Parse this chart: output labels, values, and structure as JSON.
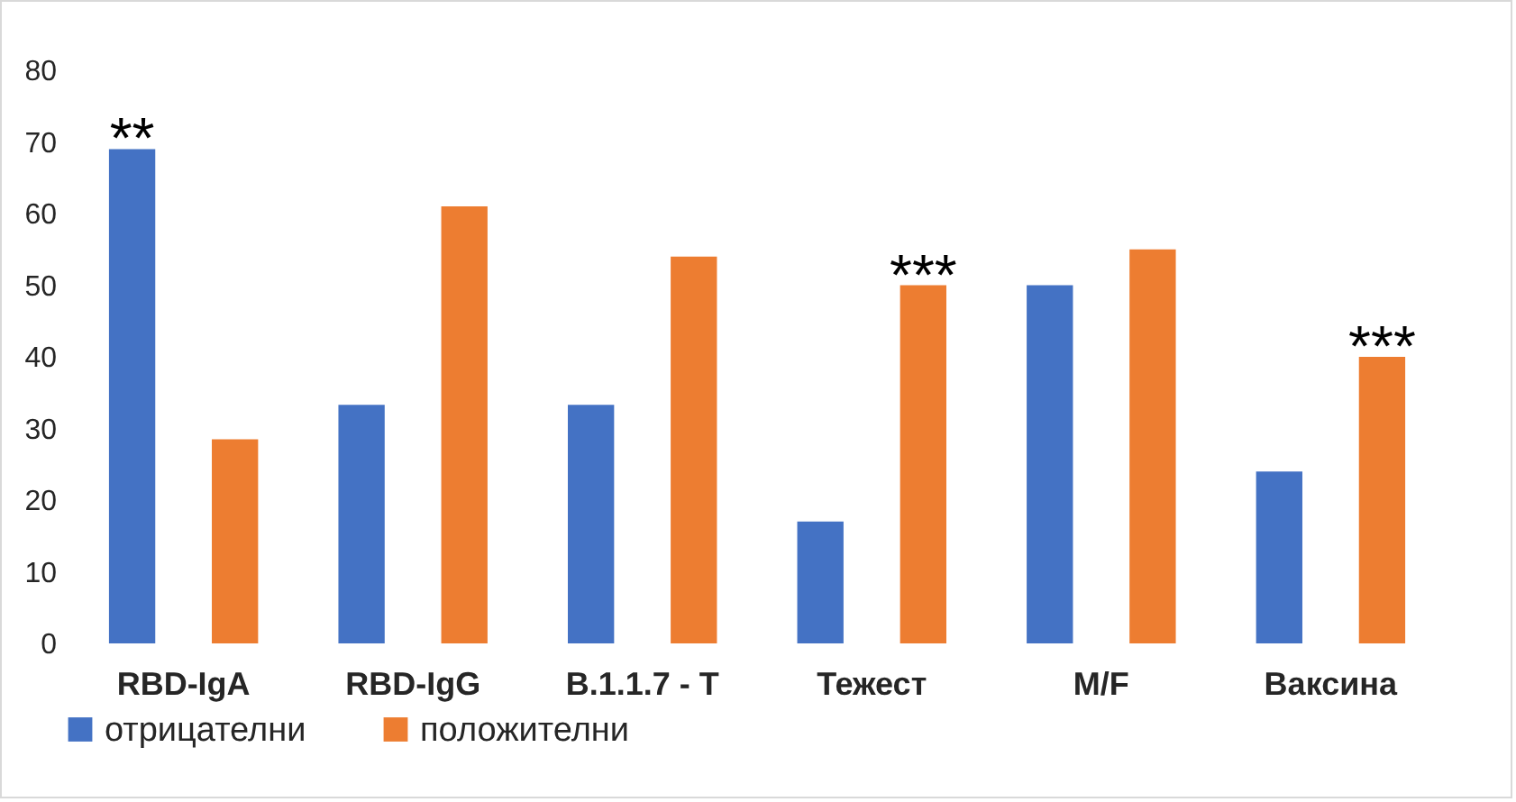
{
  "chart_data": {
    "type": "bar",
    "categories": [
      "RBD-IgA",
      "RBD-IgG",
      "B.1.1.7 - T",
      "Тежест",
      "M/F",
      "Ваксина"
    ],
    "series": [
      {
        "name": "отрицателни",
        "color": "#4472c4",
        "values": [
          69,
          33.3,
          33.3,
          17,
          50,
          24
        ]
      },
      {
        "name": "положителни",
        "color": "#ed7d31",
        "values": [
          28.5,
          61,
          54,
          50,
          55,
          40
        ]
      }
    ],
    "ylim": [
      0,
      80
    ],
    "yticks": [
      0,
      10,
      20,
      30,
      40,
      50,
      60,
      70,
      80
    ],
    "grid": false,
    "legend": "bottom",
    "annotations": [
      "**",
      "***",
      "***"
    ]
  }
}
